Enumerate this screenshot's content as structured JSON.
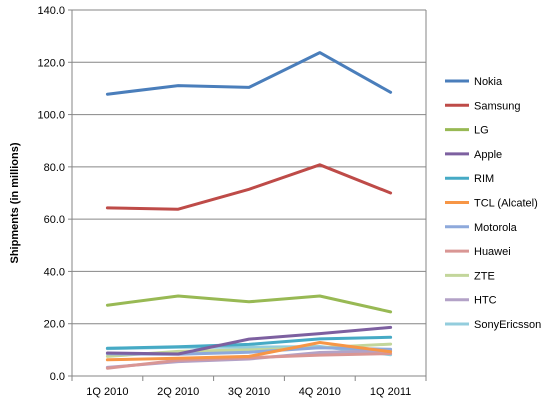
{
  "chart_data": {
    "type": "line",
    "ylabel": "Shipments (in millions)",
    "xlabel": "",
    "ylim": [
      0,
      140
    ],
    "y_ticks": [
      "0.0",
      "20.0",
      "40.0",
      "60.0",
      "80.0",
      "100.0",
      "120.0",
      "140.0"
    ],
    "categories": [
      "1Q 2010",
      "2Q 2010",
      "3Q 2010",
      "4Q 2010",
      "1Q 2011"
    ],
    "grid": "horizontal",
    "legend_position": "right",
    "series": [
      {
        "name": "Nokia",
        "color": "#4A7EBB",
        "values": [
          107.8,
          111.1,
          110.4,
          123.7,
          108.5
        ]
      },
      {
        "name": "Samsung",
        "color": "#BE4B48",
        "values": [
          64.3,
          63.8,
          71.4,
          80.8,
          70.0
        ]
      },
      {
        "name": "LG",
        "color": "#98B954",
        "values": [
          27.1,
          30.6,
          28.4,
          30.6,
          24.5
        ]
      },
      {
        "name": "Apple",
        "color": "#7D60A0",
        "values": [
          8.8,
          8.4,
          14.1,
          16.2,
          18.6
        ]
      },
      {
        "name": "RIM",
        "color": "#46AAC5",
        "values": [
          10.6,
          11.2,
          12.1,
          14.2,
          14.8
        ]
      },
      {
        "name": "TCL (Alcatel)",
        "color": "#F79646",
        "values": [
          6.2,
          6.8,
          7.5,
          12.8,
          9.3
        ]
      },
      {
        "name": "Motorola",
        "color": "#8EA9DB",
        "values": [
          8.5,
          8.3,
          9.1,
          10.8,
          10.2
        ]
      },
      {
        "name": "Huawei",
        "color": "#D99694",
        "values": [
          3.0,
          6.0,
          7.0,
          8.0,
          8.6
        ]
      },
      {
        "name": "ZTE",
        "color": "#C3D69B",
        "values": [
          7.5,
          9.4,
          10.0,
          10.8,
          12.2
        ]
      },
      {
        "name": "HTC",
        "color": "#B3A2C7",
        "values": [
          3.3,
          5.5,
          6.5,
          9.0,
          9.7
        ]
      },
      {
        "name": "SonyEricsson",
        "color": "#93CDDD",
        "values": [
          10.5,
          11.0,
          11.0,
          11.3,
          8.1
        ]
      }
    ]
  }
}
